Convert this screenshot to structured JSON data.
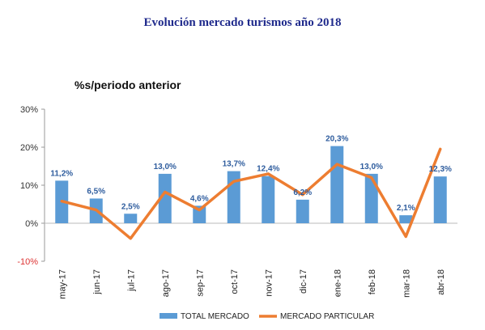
{
  "chart_data": {
    "type": "bar",
    "title": "Evolución mercado turismos año 2018",
    "subtitle": "%s/periodo anterior",
    "categories": [
      "may-17",
      "jun-17",
      "jul-17",
      "ago-17",
      "sep-17",
      "oct-17",
      "nov-17",
      "dic-17",
      "ene-18",
      "feb-18",
      "mar-18",
      "abr-18"
    ],
    "ylim": [
      -10,
      30
    ],
    "yticks": [
      -10,
      0,
      10,
      20,
      30
    ],
    "ytick_labels": [
      "-10%",
      "0%",
      "10%",
      "20%",
      "30%"
    ],
    "grid": false,
    "legend_position": "bottom",
    "series": [
      {
        "name": "TOTAL MERCADO",
        "type": "bar",
        "color": "#5b9bd5",
        "values": [
          11.2,
          6.5,
          2.5,
          13.0,
          4.6,
          13.7,
          12.4,
          6.2,
          20.3,
          13.0,
          2.1,
          12.3
        ],
        "labels": [
          "11,2%",
          "6,5%",
          "2,5%",
          "13,0%",
          "4,6%",
          "13,7%",
          "12,4%",
          "6,2%",
          "20,3%",
          "13,0%",
          "2,1%",
          "12,3%"
        ]
      },
      {
        "name": "MERCADO PARTICULAR",
        "type": "line",
        "color": "#ed7d31",
        "values": [
          5.8,
          3.5,
          -4.0,
          8.2,
          3.5,
          11.0,
          13.0,
          7.5,
          15.5,
          12.0,
          -3.5,
          19.5
        ]
      }
    ]
  }
}
